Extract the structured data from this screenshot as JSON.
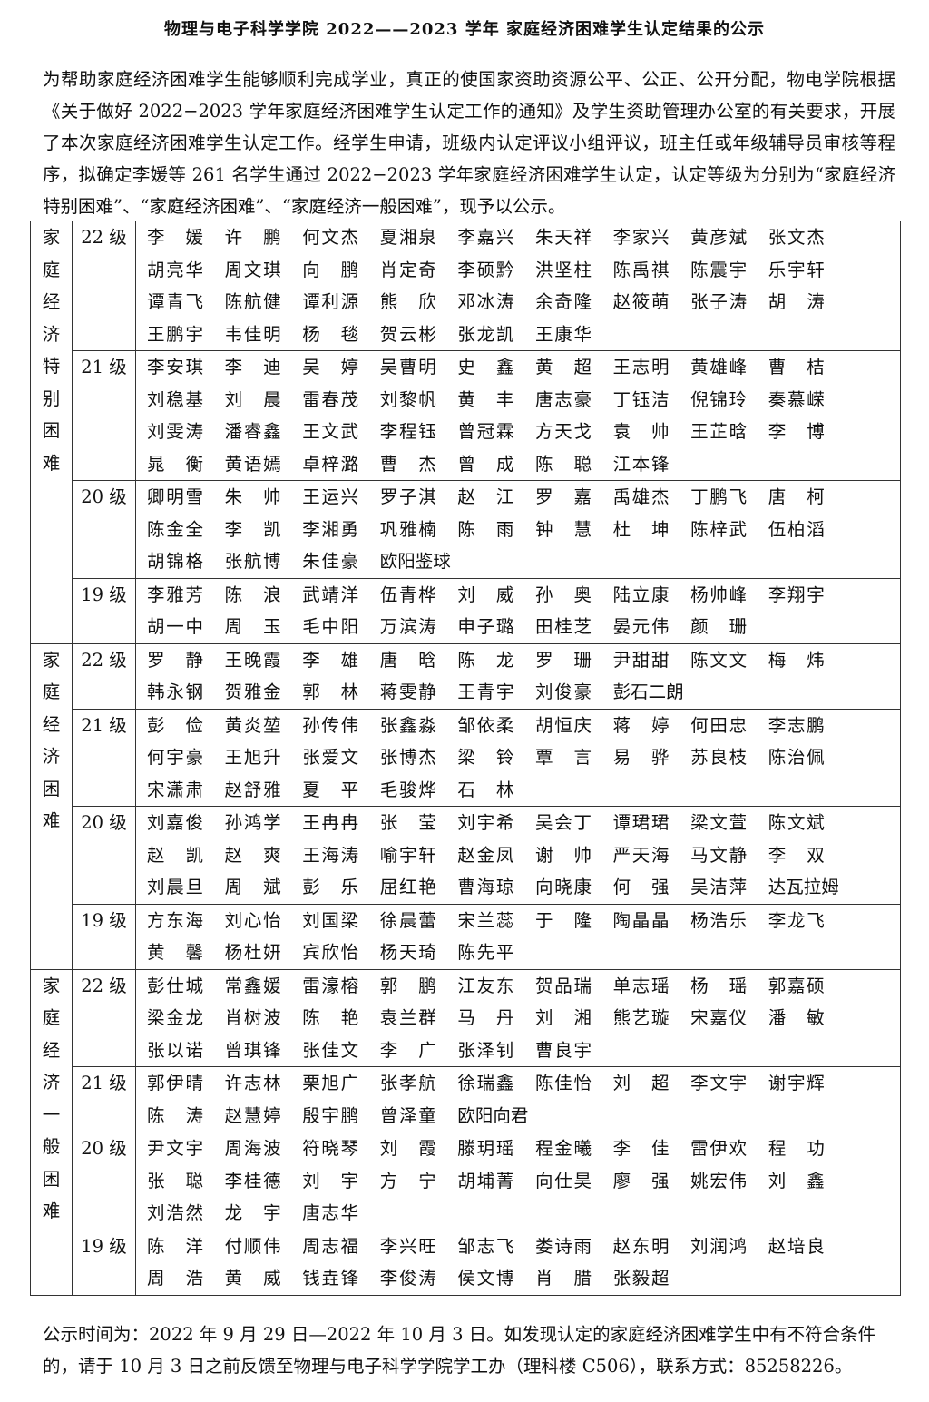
{
  "title": "物理与电子科学学院 2022——2023 学年 家庭经济困难学生认定结果的公示",
  "intro": "为帮助家庭经济困难学生能够顺利完成学业，真正的使国家资助资源公平、公正、公开分配，物电学院根据《关于做好 2022−2023 学年家庭经济困难学生认定工作的通知》及学生资助管理办公室的有关要求，开展了本次家庭经济困难学生认定工作。经学生申请，班级内认定评议小组评议，班主任或年级辅导员审核等程序，拟确定李媛等 261 名学生通过 2022−2023 学年家庭经济困难学生认定，认定等级为分别为“家庭经济特别困难”、“家庭经济困难”、“家庭经济一般困难”，现予以公示。",
  "categories": [
    {
      "label": "家庭经济特别困难",
      "grades": [
        {
          "grade": "22 级",
          "names": [
            "李媛",
            "许鹏",
            "何文杰",
            "夏湘泉",
            "李嘉兴",
            "朱天祥",
            "李家兴",
            "黄彦斌",
            "张文杰",
            "胡亮华",
            "周文琪",
            "向鹏",
            "肖定奇",
            "李硕黔",
            "洪坚柱",
            "陈禹祺",
            "陈震宇",
            "乐宇轩",
            "谭青飞",
            "陈航健",
            "谭利源",
            "熊欣",
            "邓冰涛",
            "余奇隆",
            "赵筱萌",
            "张子涛",
            "胡涛",
            "王鹏宇",
            "韦佳明",
            "杨毯",
            "贺云彬",
            "张龙凯",
            "王康华"
          ]
        },
        {
          "grade": "21 级",
          "names": [
            "李安琪",
            "李迪",
            "吴婷",
            "吴曹明",
            "史鑫",
            "黄超",
            "王志明",
            "黄雄峰",
            "曹桔",
            "刘稳基",
            "刘晨",
            "雷春茂",
            "刘黎帆",
            "黄丰",
            "唐志豪",
            "丁钰洁",
            "倪锦玲",
            "秦慕嵘",
            "刘雯涛",
            "潘睿鑫",
            "王文武",
            "李程钰",
            "曾冠霖",
            "方天戈",
            "袁帅",
            "王芷晗",
            "李博",
            "晁衡",
            "黄语嫣",
            "卓梓潞",
            "曹杰",
            "曾成",
            "陈聪",
            "江本锋"
          ]
        },
        {
          "grade": "20 级",
          "names": [
            "卿明雪",
            "朱帅",
            "王运兴",
            "罗子淇",
            "赵江",
            "罗嘉",
            "禹雄杰",
            "丁鹏飞",
            "唐柯",
            "陈金全",
            "李凯",
            "李湘勇",
            "巩雅楠",
            "陈雨",
            "钟慧",
            "杜坤",
            "陈梓武",
            "伍柏滔",
            "胡锦格",
            "张航博",
            "朱佳豪",
            "欧阳鉴球"
          ]
        },
        {
          "grade": "19 级",
          "names": [
            "李雅芳",
            "陈浪",
            "武靖洋",
            "伍青桦",
            "刘威",
            "孙奥",
            "陆立康",
            "杨帅峰",
            "李翔宇",
            "胡一中",
            "周玉",
            "毛中阳",
            "万滨涛",
            "申子璐",
            "田桂芝",
            "晏元伟",
            "颜珊"
          ]
        }
      ]
    },
    {
      "label": "家庭经济困难",
      "grades": [
        {
          "grade": "22 级",
          "names": [
            "罗静",
            "王晚霞",
            "李雄",
            "唐晗",
            "陈龙",
            "罗珊",
            "尹甜甜",
            "陈文文",
            "梅炜",
            "韩永钢",
            "贺雅金",
            "郭林",
            "蒋雯静",
            "王青宇",
            "刘俊豪",
            "彭石二朗"
          ]
        },
        {
          "grade": "21 级",
          "names": [
            "彭俭",
            "黄炎堃",
            "孙传伟",
            "张鑫淼",
            "邹依柔",
            "胡恒庆",
            "蒋婷",
            "何田忠",
            "李志鹏",
            "何宇豪",
            "王旭升",
            "张爱文",
            "张博杰",
            "梁铃",
            "覃言",
            "易骅",
            "苏良枝",
            "陈治佩",
            "宋潇肃",
            "赵舒雅",
            "夏平",
            "毛骏烨",
            "石林"
          ]
        },
        {
          "grade": "20 级",
          "names": [
            "刘嘉俊",
            "孙鸿学",
            "王冉冉",
            "张莹",
            "刘宇希",
            "吴会丁",
            "谭珺珺",
            "梁文萱",
            "陈文斌",
            "赵凯",
            "赵爽",
            "王海涛",
            "喻宇轩",
            "赵金凤",
            "谢帅",
            "严天海",
            "马文静",
            "李双",
            "刘晨旦",
            "周斌",
            "彭乐",
            "屈红艳",
            "曹海琼",
            "向晓康",
            "何强",
            "吴洁萍",
            "达瓦拉姆"
          ]
        },
        {
          "grade": "19 级",
          "names": [
            "方东海",
            "刘心怡",
            "刘国梁",
            "徐晨蕾",
            "宋兰蕊",
            "于隆",
            "陶晶晶",
            "杨浩乐",
            "李龙飞",
            "黄馨",
            "杨杜妍",
            "宾欣怡",
            "杨天琦",
            "陈先平"
          ]
        }
      ]
    },
    {
      "label": "家庭经济一般困难",
      "grades": [
        {
          "grade": "22 级",
          "names": [
            "彭仕城",
            "常鑫媛",
            "雷濠榕",
            "郭鹏",
            "江友东",
            "贺品瑞",
            "单志瑶",
            "杨瑶",
            "郭嘉硕",
            "梁金龙",
            "肖树波",
            "陈艳",
            "袁兰群",
            "马丹",
            "刘湘",
            "熊艺璇",
            "宋嘉仪",
            "潘敏",
            "张以诺",
            "曾琪锋",
            "张佳文",
            "李广",
            "张泽钊",
            "曹良宇"
          ]
        },
        {
          "grade": "21 级",
          "names": [
            "郭伊晴",
            "许志林",
            "栗旭广",
            "张孝航",
            "徐瑞鑫",
            "陈佳怡",
            "刘超",
            "李文宇",
            "谢宇辉",
            "陈涛",
            "赵慧婷",
            "殷宇鹏",
            "曾泽童",
            "欧阳向君"
          ]
        },
        {
          "grade": "20 级",
          "names": [
            "尹文宇",
            "周海波",
            "符晓琴",
            "刘霞",
            "滕玥瑶",
            "程金曦",
            "李佳",
            "雷伊欢",
            "程功",
            "张聪",
            "李桂德",
            "刘宇",
            "方宁",
            "胡埔菁",
            "向仕昊",
            "廖强",
            "姚宏伟",
            "刘鑫",
            "刘浩然",
            "龙宇",
            "唐志华"
          ]
        },
        {
          "grade": "19 级",
          "names": [
            "陈洋",
            "付顺伟",
            "周志福",
            "李兴旺",
            "邹志飞",
            "娄诗雨",
            "赵东明",
            "刘润鸿",
            "赵培良",
            "周浩",
            "黄威",
            "钱垚锋",
            "李俊涛",
            "侯文博",
            "肖腊",
            "张毅超"
          ]
        }
      ]
    }
  ],
  "footer": "公示时间为：2022 年 9 月 29 日—2022 年 10 月 3 日。如发现认定的家庭经济困难学生中有不符合条件的，请于 10 月 3 日之前反馈至物理与电子科学学院学工办（理科楼 C506），联系方式：85258226。"
}
